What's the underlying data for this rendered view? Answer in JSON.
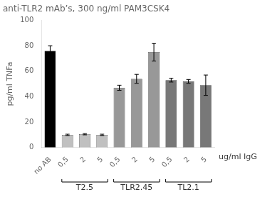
{
  "chart_data": {
    "type": "bar",
    "title": "anti-TLR2 mAb’s, 300 ng/ml PAM3CSK4",
    "ylabel": "pg/ml TNFa",
    "xlabel": "ug/ml IgG",
    "categories": [
      "no AB",
      "0,5",
      "2",
      "5",
      "0,5",
      "2",
      "5",
      "0,5",
      "2",
      "5"
    ],
    "values": [
      76,
      10,
      10.5,
      10,
      47,
      54,
      75,
      53,
      52,
      49
    ],
    "errors": [
      4,
      0.5,
      0.5,
      0.5,
      2,
      3.5,
      7,
      1.5,
      1.5,
      8
    ],
    "colors": [
      "#000000",
      "#c0c0c0",
      "#c0c0c0",
      "#c0c0c0",
      "#989898",
      "#989898",
      "#989898",
      "#787878",
      "#787878",
      "#787878"
    ],
    "groups": [
      {
        "name": "T2.5",
        "start": 1,
        "end": 3
      },
      {
        "name": "TLR2.45",
        "start": 4,
        "end": 6
      },
      {
        "name": "TL2.1",
        "start": 7,
        "end": 9
      }
    ],
    "ylim": [
      0,
      100
    ],
    "yticks": [
      0,
      20,
      40,
      60,
      80,
      100
    ],
    "grid": false
  }
}
